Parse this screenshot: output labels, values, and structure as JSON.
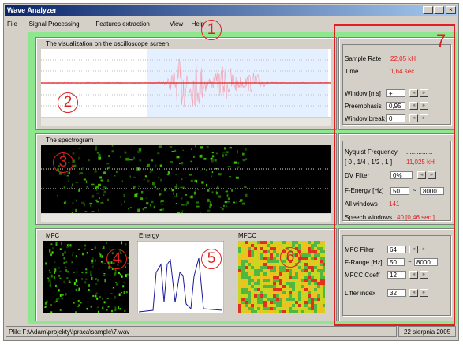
{
  "window": {
    "title": "Wave Analyzer"
  },
  "menu": [
    "File",
    "Signal Processing",
    "Features extraction",
    "View",
    "Help"
  ],
  "panels": {
    "oscilloscope": "The visualization on the oscilloscope screen",
    "spectrogram": "The spectrogram",
    "mfc": "MFC",
    "energy": "Energy",
    "mfcc": "MFCC"
  },
  "signal": {
    "sample_rate_label": "Sample Rate",
    "sample_rate": "22,05 kH",
    "time_label": "Time",
    "time": "1,64 sec.",
    "window_label": "Window [ms]",
    "window": "+",
    "preemphasis_label": "Preemphasis",
    "preemphasis": "0,95",
    "window_break_label": "Window break",
    "window_break": "0"
  },
  "spectrum": {
    "nyquist_label": "Nyquist Frequency",
    "nyquist": "...............",
    "range_label": "[ 0 , 1/4 , 1/2 , 1 ]",
    "range": "11,025 kH",
    "dv_filter_label": "DV Filter",
    "dv_filter": "0%",
    "f_energy_label": "F-Energy [Hz]",
    "f_energy_from": "50",
    "f_energy_sep": "~",
    "f_energy_to": "8000",
    "all_windows_label": "All windows",
    "all_windows": "141",
    "speech_windows_label": "Speech windows",
    "speech_windows": "40 [0,46 sec.]"
  },
  "mfcc": {
    "mfc_filter_label": "MFC Filter",
    "mfc_filter": "64",
    "f_range_label": "F-Range [Hz]",
    "f_range_from": "50",
    "f_range_sep": "~",
    "f_range_to": "8000",
    "coeff_label": "MFCC Coeff",
    "coeff": "12",
    "lifter_label": "Lifter index",
    "lifter": "32"
  },
  "annotations": [
    "1",
    "2",
    "3",
    "4",
    "5",
    "6",
    "7"
  ],
  "status": {
    "file": "Plik: F:\\Adam\\projekty\\!praca\\sample\\7.wav",
    "date": "22 sierpnia 2005"
  }
}
